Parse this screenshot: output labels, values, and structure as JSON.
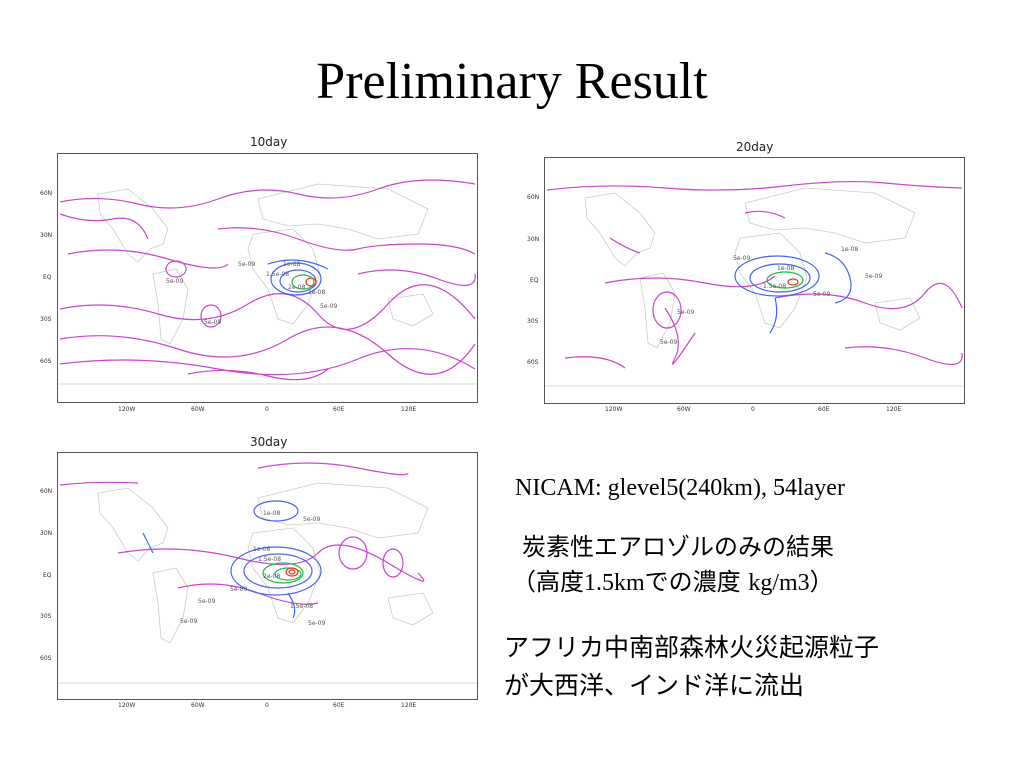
{
  "slide": {
    "title": "Preliminary Result"
  },
  "panels": [
    {
      "title": "10day",
      "y_labels": [
        "60N",
        "30N",
        "EQ",
        "30S",
        "60S"
      ],
      "x_labels": [
        "120W",
        "60W",
        "0",
        "60E",
        "120E"
      ],
      "contour_labels": [
        "5e-09",
        "1e-08",
        "1.5e-08",
        "2e-08",
        "5e-09",
        "5e-09",
        "5e-09",
        "1e-08"
      ]
    },
    {
      "title": "20day",
      "y_labels": [
        "60N",
        "30N",
        "EQ",
        "30S",
        "60S"
      ],
      "x_labels": [
        "120W",
        "60W",
        "0",
        "60E",
        "120E"
      ],
      "contour_labels": [
        "5e-09",
        "1e-08",
        "1.5e-08",
        "5e-09",
        "5e-09",
        "1e-08",
        "5e-09",
        "5e-09"
      ]
    },
    {
      "title": "30day",
      "y_labels": [
        "60N",
        "30N",
        "EQ",
        "30S",
        "60S"
      ],
      "x_labels": [
        "120W",
        "60W",
        "0",
        "60E",
        "120E"
      ],
      "contour_labels": [
        "1e-08",
        "5e-09",
        "1e-08",
        "1.5e-08",
        "2e-08",
        "5e-09",
        "5e-09",
        "1.5e-08",
        "5e-09",
        "5e-09"
      ]
    }
  ],
  "info": {
    "model": "NICAM: glevel5(240km), 54layer",
    "desc_line1": "炭素性エアロゾルのみの結果",
    "desc_line2_a": "（高度",
    "desc_line2_b": "1.5km",
    "desc_line2_c": "での濃度 ",
    "desc_line2_d": "kg/m3",
    "desc_line2_e": "）",
    "conclusion_line1": "アフリカ中南部森林火災起源粒子",
    "conclusion_line2": "が大西洋、インド洋に流出"
  },
  "colors": {
    "contour_low": "#cc44cc",
    "contour_mid": "#4466ee",
    "contour_high": "#22bb44",
    "contour_peak": "#ee3322",
    "coast": "#cccccc",
    "frame": "#555555"
  }
}
